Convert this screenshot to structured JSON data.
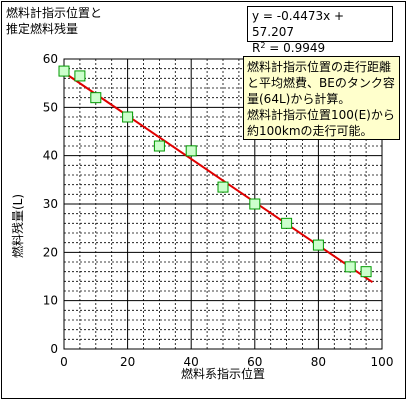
{
  "chart_data": {
    "type": "scatter",
    "title_lines": [
      "燃料計指示位置と",
      "推定燃料残量"
    ],
    "xlabel": "燃料系指示位置",
    "ylabel": "燃料残量(L)",
    "xlim": [
      0,
      100
    ],
    "ylim": [
      0,
      60
    ],
    "xticks": [
      0,
      20,
      40,
      60,
      80,
      100
    ],
    "yticks": [
      0,
      10,
      20,
      30,
      40,
      50,
      60
    ],
    "grid": true,
    "points": [
      {
        "x": 0,
        "y": 57.5
      },
      {
        "x": 5,
        "y": 56.5
      },
      {
        "x": 10,
        "y": 52
      },
      {
        "x": 20,
        "y": 48
      },
      {
        "x": 30,
        "y": 42
      },
      {
        "x": 40,
        "y": 41
      },
      {
        "x": 50,
        "y": 33.5
      },
      {
        "x": 60,
        "y": 30
      },
      {
        "x": 70,
        "y": 26
      },
      {
        "x": 80,
        "y": 21.5
      },
      {
        "x": 90,
        "y": 17
      },
      {
        "x": 95,
        "y": 16
      }
    ],
    "trendline": {
      "slope": -0.4473,
      "intercept": 57.207,
      "x_range": [
        0,
        97
      ],
      "color": "#e00000"
    },
    "equation": "y = -0.4473x + 57.207",
    "r2_label": "R",
    "r2_sup": "2",
    "r2_value": " = 0.9949",
    "note_lines": [
      "燃料計指示位置の走行距離",
      "と平均燃費、BEのタンク容",
      "量(64L)から計算。",
      "燃料計指示位置100(E)から",
      "約100kmの走行可能。"
    ],
    "colors": {
      "marker_fill": "#ccffcc",
      "marker_stroke": "#009900",
      "grid": "#000000",
      "note_bg": "#ffffcc"
    }
  }
}
